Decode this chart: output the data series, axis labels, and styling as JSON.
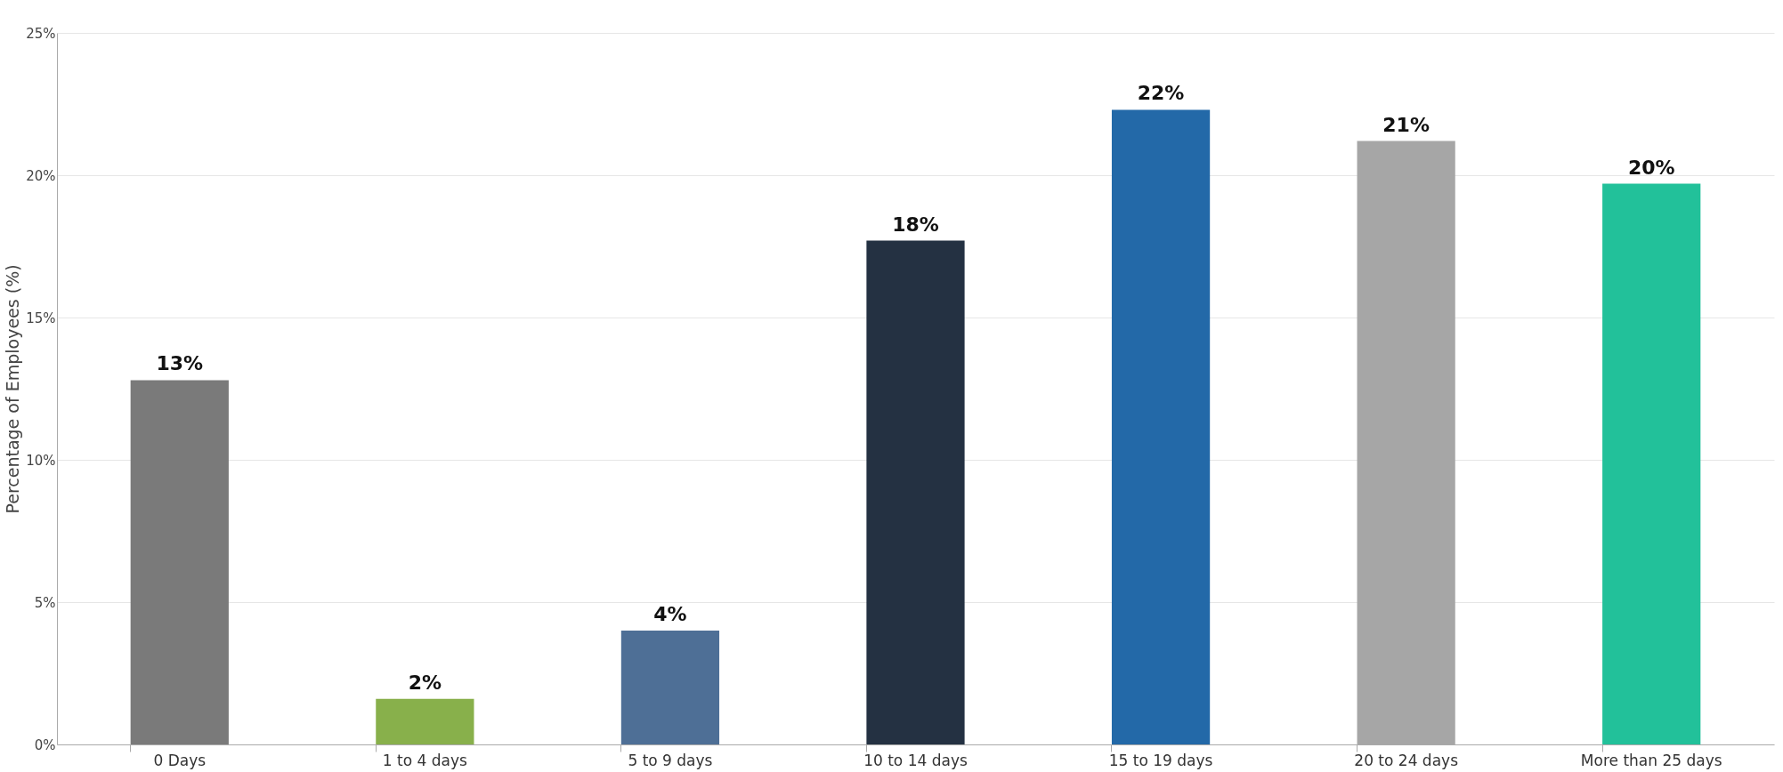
{
  "chart_data": {
    "type": "bar",
    "ylabel": "Percentage of Employees (%)",
    "categories": [
      "0 Days",
      "1 to 4 days",
      "5 to 9 days",
      "10 to 14 days",
      "15 to 19 days",
      "20 to 24 days",
      "More than 25 days"
    ],
    "values": [
      12.8,
      1.6,
      4.0,
      17.7,
      22.3,
      21.2,
      19.7
    ],
    "colors": [
      "#7a7a7a",
      "#88b04b",
      "#4e6f96",
      "#243142",
      "#2369a8",
      "#a6a6a6",
      "#22c19a"
    ],
    "value_labels": [
      "13%",
      "2%",
      "4%",
      "18%",
      "22%",
      "21%",
      "20%"
    ],
    "ylim": [
      0,
      25
    ],
    "yticks": [
      {
        "value": 0,
        "label": "0%"
      },
      {
        "value": 5,
        "label": "5%"
      },
      {
        "value": 10,
        "label": "10%"
      },
      {
        "value": 15,
        "label": "15%"
      },
      {
        "value": 20,
        "label": "20%"
      },
      {
        "value": 25,
        "label": "25%"
      }
    ],
    "grid": "y"
  }
}
